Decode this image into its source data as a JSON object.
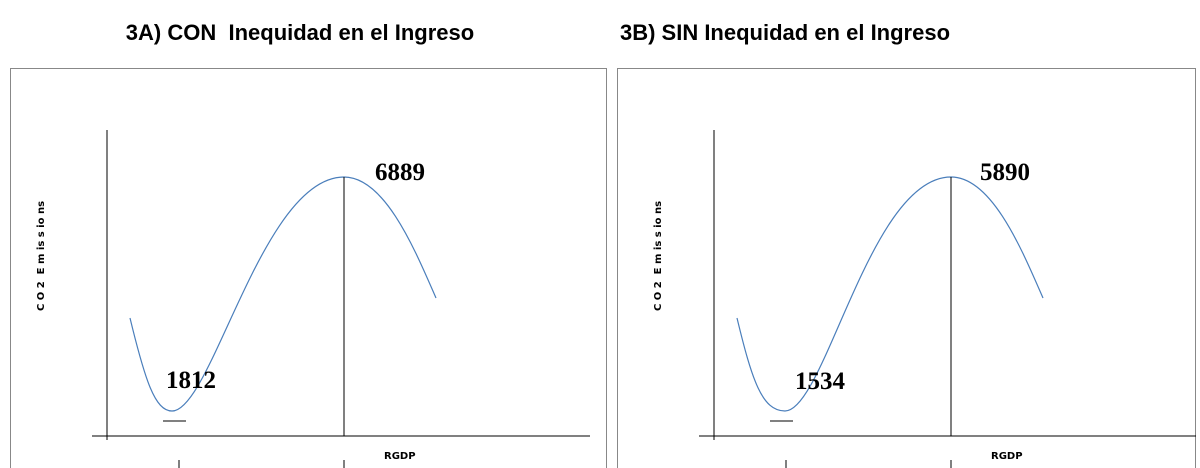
{
  "panels": [
    {
      "title": "3A) CON  Inequidad en el Ingreso",
      "y_label": "C O 2  E m is s io ns",
      "x_label": "RGDP",
      "peak_label": 6889,
      "trough_label": 1812
    },
    {
      "title": "3B) SIN Inequidad en el Ingreso",
      "y_label": "C O 2  E m is s io ns",
      "x_label": "RGDP",
      "peak_label": 5890,
      "trough_label": 1534
    }
  ]
}
